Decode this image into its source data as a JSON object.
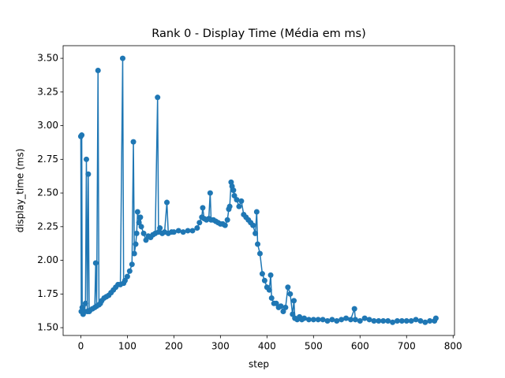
{
  "chart_data": {
    "type": "line",
    "title": "Rank 0 - Display Time (Média em ms)",
    "x_label": "step",
    "y_label": "display_time (ms)",
    "color": "#1f77b4",
    "x": [
      0,
      1,
      2,
      3,
      5,
      8,
      10,
      12,
      14,
      16,
      18,
      20,
      25,
      30,
      32,
      34,
      37,
      39,
      42,
      45,
      50,
      55,
      60,
      65,
      70,
      75,
      80,
      85,
      90,
      92,
      95,
      100,
      105,
      110,
      113,
      115,
      118,
      120,
      122,
      125,
      128,
      130,
      135,
      140,
      145,
      150,
      155,
      160,
      165,
      167,
      170,
      175,
      180,
      185,
      188,
      195,
      200,
      210,
      220,
      230,
      240,
      250,
      255,
      260,
      262,
      265,
      270,
      275,
      278,
      280,
      285,
      290,
      295,
      300,
      305,
      310,
      315,
      318,
      320,
      323,
      325,
      328,
      330,
      335,
      340,
      345,
      350,
      355,
      360,
      365,
      370,
      375,
      378,
      380,
      385,
      390,
      395,
      400,
      405,
      408,
      410,
      415,
      420,
      425,
      430,
      435,
      440,
      445,
      450,
      455,
      458,
      460,
      465,
      470,
      475,
      480,
      490,
      500,
      510,
      520,
      530,
      540,
      550,
      560,
      570,
      580,
      588,
      590,
      600,
      610,
      620,
      630,
      640,
      650,
      660,
      670,
      680,
      690,
      700,
      710,
      720,
      730,
      740,
      750,
      760,
      763
    ],
    "values": [
      2.92,
      1.62,
      2.93,
      1.65,
      1.6,
      1.62,
      1.68,
      2.75,
      1.62,
      2.64,
      1.62,
      1.63,
      1.64,
      1.65,
      1.98,
      1.66,
      3.41,
      1.67,
      1.68,
      1.7,
      1.72,
      1.73,
      1.74,
      1.76,
      1.78,
      1.8,
      1.82,
      1.82,
      3.5,
      1.83,
      1.85,
      1.88,
      1.92,
      1.97,
      2.88,
      2.05,
      2.12,
      2.2,
      2.36,
      2.28,
      2.32,
      2.25,
      2.2,
      2.15,
      2.18,
      2.17,
      2.19,
      2.2,
      3.21,
      2.21,
      2.24,
      2.2,
      2.21,
      2.43,
      2.2,
      2.21,
      2.21,
      2.22,
      2.21,
      2.22,
      2.22,
      2.24,
      2.28,
      2.32,
      2.39,
      2.31,
      2.3,
      2.31,
      2.5,
      2.3,
      2.3,
      2.29,
      2.28,
      2.27,
      2.27,
      2.26,
      2.3,
      2.38,
      2.4,
      2.58,
      2.55,
      2.52,
      2.48,
      2.45,
      2.4,
      2.44,
      2.34,
      2.32,
      2.3,
      2.28,
      2.26,
      2.2,
      2.36,
      2.12,
      2.05,
      1.9,
      1.85,
      1.8,
      1.78,
      1.89,
      1.72,
      1.68,
      1.68,
      1.65,
      1.66,
      1.62,
      1.65,
      1.8,
      1.75,
      1.6,
      1.7,
      1.57,
      1.56,
      1.58,
      1.56,
      1.57,
      1.56,
      1.56,
      1.56,
      1.56,
      1.55,
      1.56,
      1.55,
      1.56,
      1.57,
      1.56,
      1.64,
      1.56,
      1.55,
      1.57,
      1.56,
      1.55,
      1.55,
      1.55,
      1.55,
      1.54,
      1.55,
      1.55,
      1.55,
      1.55,
      1.56,
      1.55,
      1.54,
      1.55,
      1.55,
      1.57
    ],
    "xlim": [
      -38,
      803
    ],
    "xticks": [
      0,
      100,
      200,
      300,
      400,
      500,
      600,
      700,
      800
    ],
    "ylim": [
      1.442,
      3.594
    ],
    "yticks": [
      {
        "value": 1.5,
        "label": "1.50"
      },
      {
        "value": 1.75,
        "label": "1.75"
      },
      {
        "value": 2.0,
        "label": "2.00"
      },
      {
        "value": 2.25,
        "label": "2.25"
      },
      {
        "value": 2.5,
        "label": "2.50"
      },
      {
        "value": 2.75,
        "label": "2.75"
      },
      {
        "value": 3.0,
        "label": "3.00"
      },
      {
        "value": 3.25,
        "label": "3.25"
      },
      {
        "value": 3.5,
        "label": "3.50"
      }
    ],
    "grid": false
  }
}
